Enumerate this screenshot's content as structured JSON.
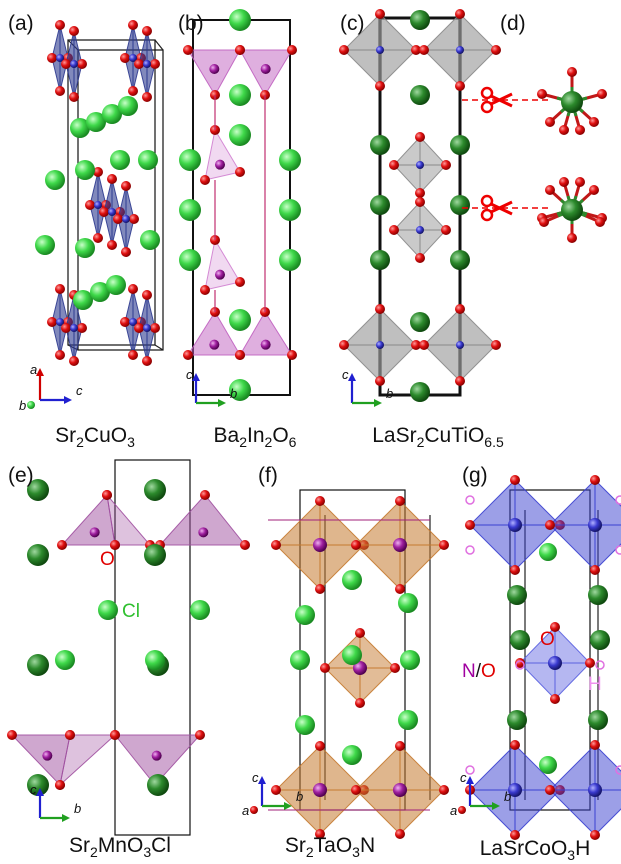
{
  "panels": [
    {
      "label": "(a)",
      "formula": [
        "Sr",
        "2",
        "CuO",
        "3"
      ],
      "axes": [
        "a",
        "b",
        "c"
      ]
    },
    {
      "label": "(b)",
      "formula": [
        "Ba",
        "2",
        "In",
        "2",
        "O",
        "6"
      ],
      "axes": [
        "c",
        "b"
      ]
    },
    {
      "label": "(c)",
      "formula": [
        "LaSr",
        "2",
        "CuTiO",
        "6.5"
      ],
      "axes": [
        "c",
        "b"
      ]
    },
    {
      "label": "(d)"
    },
    {
      "label": "(e)",
      "formula": [
        "Sr",
        "2",
        "MnO",
        "3",
        "Cl"
      ],
      "axes": [
        "c",
        "b"
      ],
      "atom_labels": [
        "O",
        "Cl"
      ]
    },
    {
      "label": "(f)",
      "formula": [
        "Sr",
        "2",
        "TaO",
        "3",
        "N"
      ],
      "axes": [
        "c",
        "a",
        "b"
      ],
      "atom_labels": [
        "N",
        "/",
        "O"
      ]
    },
    {
      "label": "(g)",
      "formula": [
        "LaSrCoO",
        "3",
        "H"
      ],
      "axes": [
        "c",
        "a",
        "b"
      ],
      "atom_labels": [
        "O",
        "H"
      ]
    }
  ]
}
